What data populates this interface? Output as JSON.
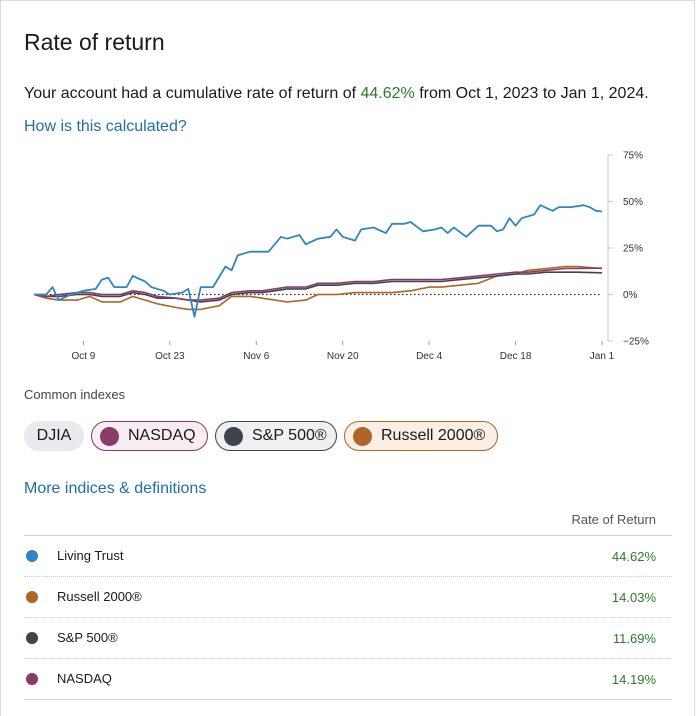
{
  "header": {
    "title": "Rate of return",
    "summary_prefix": "Your account had a cumulative rate of return of ",
    "summary_pct": "44.62%",
    "summary_suffix": " from Oct 1, 2023 to Jan 1, 2024.",
    "how_link": "How is this calculated?"
  },
  "chart_data": {
    "type": "line",
    "x_start": "2023-10-01",
    "x_end": "2024-01-01",
    "x_tick_labels": [
      "Oct 9",
      "Oct 23",
      "Nov 6",
      "Nov 20",
      "Dec 4",
      "Dec 18",
      "Jan 1"
    ],
    "x_tick_dates": [
      "2023-10-09",
      "2023-10-23",
      "2023-11-06",
      "2023-11-20",
      "2023-12-04",
      "2023-12-18",
      "2024-01-01"
    ],
    "y_tick_labels": [
      "75%",
      "50%",
      "25%",
      "0%",
      "−25%"
    ],
    "y_tick_values": [
      75,
      50,
      25,
      0,
      -25
    ],
    "ylim": [
      -25,
      75
    ],
    "zero_line": "dotted",
    "grid": false,
    "y_axis_position": "right",
    "series": [
      {
        "name": "Russell 2000®",
        "color": "#b06426",
        "points": [
          [
            "2023-10-01",
            0
          ],
          [
            "2023-10-03",
            -2
          ],
          [
            "2023-10-05",
            -3
          ],
          [
            "2023-10-08",
            -3
          ],
          [
            "2023-10-10",
            -1
          ],
          [
            "2023-10-12",
            -4
          ],
          [
            "2023-10-15",
            -4
          ],
          [
            "2023-10-17",
            -1
          ],
          [
            "2023-10-19",
            -3
          ],
          [
            "2023-10-21",
            -5
          ],
          [
            "2023-10-24",
            -7
          ],
          [
            "2023-10-26",
            -8
          ],
          [
            "2023-10-28",
            -8
          ],
          [
            "2023-10-31",
            -6
          ],
          [
            "2023-11-02",
            -1
          ],
          [
            "2023-11-05",
            -1
          ],
          [
            "2023-11-07",
            -2
          ],
          [
            "2023-11-09",
            -3
          ],
          [
            "2023-11-11",
            -4
          ],
          [
            "2023-11-14",
            -3
          ],
          [
            "2023-11-16",
            0
          ],
          [
            "2023-11-19",
            0
          ],
          [
            "2023-11-22",
            1
          ],
          [
            "2023-11-25",
            1
          ],
          [
            "2023-11-28",
            1
          ],
          [
            "2023-12-01",
            2
          ],
          [
            "2023-12-04",
            4
          ],
          [
            "2023-12-06",
            4
          ],
          [
            "2023-12-09",
            5
          ],
          [
            "2023-12-12",
            6
          ],
          [
            "2023-12-15",
            10
          ],
          [
            "2023-12-18",
            11
          ],
          [
            "2023-12-20",
            13
          ],
          [
            "2023-12-23",
            14
          ],
          [
            "2023-12-26",
            15
          ],
          [
            "2023-12-28",
            15
          ],
          [
            "2024-01-01",
            14
          ]
        ]
      },
      {
        "name": "S&P 500®",
        "color": "#3d444b",
        "points": [
          [
            "2023-10-01",
            0
          ],
          [
            "2023-10-03",
            -1
          ],
          [
            "2023-10-05",
            -1
          ],
          [
            "2023-10-08",
            0
          ],
          [
            "2023-10-10",
            0
          ],
          [
            "2023-10-12",
            -1
          ],
          [
            "2023-10-15",
            -1
          ],
          [
            "2023-10-17",
            1
          ],
          [
            "2023-10-19",
            0
          ],
          [
            "2023-10-21",
            -2
          ],
          [
            "2023-10-24",
            -2
          ],
          [
            "2023-10-26",
            -3
          ],
          [
            "2023-10-28",
            -4
          ],
          [
            "2023-10-31",
            -3
          ],
          [
            "2023-11-02",
            0
          ],
          [
            "2023-11-05",
            1
          ],
          [
            "2023-11-07",
            1
          ],
          [
            "2023-11-09",
            2
          ],
          [
            "2023-11-11",
            3
          ],
          [
            "2023-11-14",
            3
          ],
          [
            "2023-11-16",
            5
          ],
          [
            "2023-11-19",
            5
          ],
          [
            "2023-11-22",
            6
          ],
          [
            "2023-11-25",
            6
          ],
          [
            "2023-11-28",
            7
          ],
          [
            "2023-12-01",
            7
          ],
          [
            "2023-12-04",
            7
          ],
          [
            "2023-12-06",
            7
          ],
          [
            "2023-12-09",
            8
          ],
          [
            "2023-12-12",
            9
          ],
          [
            "2023-12-15",
            10
          ],
          [
            "2023-12-18",
            11
          ],
          [
            "2023-12-20",
            11
          ],
          [
            "2023-12-23",
            12
          ],
          [
            "2023-12-26",
            12
          ],
          [
            "2023-12-28",
            12
          ],
          [
            "2024-01-01",
            11.69
          ]
        ]
      },
      {
        "name": "NASDAQ",
        "color": "#8a3a66",
        "points": [
          [
            "2023-10-01",
            0
          ],
          [
            "2023-10-03",
            -1
          ],
          [
            "2023-10-05",
            0
          ],
          [
            "2023-10-08",
            1
          ],
          [
            "2023-10-10",
            1
          ],
          [
            "2023-10-12",
            0
          ],
          [
            "2023-10-15",
            0
          ],
          [
            "2023-10-17",
            2
          ],
          [
            "2023-10-19",
            1
          ],
          [
            "2023-10-21",
            -1
          ],
          [
            "2023-10-24",
            -2
          ],
          [
            "2023-10-26",
            -3
          ],
          [
            "2023-10-28",
            -3
          ],
          [
            "2023-10-31",
            -2
          ],
          [
            "2023-11-02",
            1
          ],
          [
            "2023-11-05",
            2
          ],
          [
            "2023-11-07",
            2
          ],
          [
            "2023-11-09",
            3
          ],
          [
            "2023-11-11",
            4
          ],
          [
            "2023-11-14",
            4
          ],
          [
            "2023-11-16",
            6
          ],
          [
            "2023-11-19",
            6
          ],
          [
            "2023-11-22",
            7
          ],
          [
            "2023-11-25",
            7
          ],
          [
            "2023-11-28",
            8
          ],
          [
            "2023-12-01",
            8
          ],
          [
            "2023-12-04",
            8
          ],
          [
            "2023-12-06",
            8
          ],
          [
            "2023-12-09",
            9
          ],
          [
            "2023-12-12",
            10
          ],
          [
            "2023-12-15",
            11
          ],
          [
            "2023-12-18",
            12
          ],
          [
            "2023-12-20",
            12
          ],
          [
            "2023-12-23",
            13
          ],
          [
            "2023-12-26",
            14
          ],
          [
            "2023-12-28",
            14
          ],
          [
            "2024-01-01",
            14.19
          ]
        ]
      },
      {
        "name": "Living Trust",
        "color": "#2f86c3",
        "points": [
          [
            "2023-10-01",
            0
          ],
          [
            "2023-10-03",
            0
          ],
          [
            "2023-10-04",
            4
          ],
          [
            "2023-10-05",
            -3
          ],
          [
            "2023-10-07",
            0
          ],
          [
            "2023-10-09",
            2
          ],
          [
            "2023-10-11",
            3
          ],
          [
            "2023-10-12",
            8
          ],
          [
            "2023-10-13",
            9
          ],
          [
            "2023-10-14",
            4
          ],
          [
            "2023-10-16",
            4
          ],
          [
            "2023-10-17",
            10
          ],
          [
            "2023-10-19",
            7
          ],
          [
            "2023-10-20",
            4
          ],
          [
            "2023-10-22",
            2
          ],
          [
            "2023-10-23",
            0
          ],
          [
            "2023-10-25",
            1
          ],
          [
            "2023-10-26",
            3
          ],
          [
            "2023-10-27",
            -12
          ],
          [
            "2023-10-28",
            4
          ],
          [
            "2023-10-30",
            4
          ],
          [
            "2023-11-01",
            15
          ],
          [
            "2023-11-02",
            13
          ],
          [
            "2023-11-03",
            21
          ],
          [
            "2023-11-05",
            23
          ],
          [
            "2023-11-08",
            23
          ],
          [
            "2023-11-10",
            31
          ],
          [
            "2023-11-11",
            30
          ],
          [
            "2023-11-13",
            32
          ],
          [
            "2023-11-14",
            27
          ],
          [
            "2023-11-16",
            30
          ],
          [
            "2023-11-18",
            31
          ],
          [
            "2023-11-19",
            35
          ],
          [
            "2023-11-20",
            31
          ],
          [
            "2023-11-22",
            29
          ],
          [
            "2023-11-23",
            35
          ],
          [
            "2023-11-25",
            36
          ],
          [
            "2023-11-27",
            33
          ],
          [
            "2023-11-28",
            38
          ],
          [
            "2023-11-30",
            38
          ],
          [
            "2023-12-01",
            39
          ],
          [
            "2023-12-03",
            34
          ],
          [
            "2023-12-05",
            35
          ],
          [
            "2023-12-06",
            36
          ],
          [
            "2023-12-07",
            33
          ],
          [
            "2023-12-08",
            36
          ],
          [
            "2023-12-10",
            31
          ],
          [
            "2023-12-12",
            37
          ],
          [
            "2023-12-14",
            37
          ],
          [
            "2023-12-15",
            34
          ],
          [
            "2023-12-16",
            35
          ],
          [
            "2023-12-17",
            41
          ],
          [
            "2023-12-18",
            37
          ],
          [
            "2023-12-19",
            41
          ],
          [
            "2023-12-21",
            43
          ],
          [
            "2023-12-22",
            48
          ],
          [
            "2023-12-24",
            45
          ],
          [
            "2023-12-25",
            47
          ],
          [
            "2023-12-27",
            47
          ],
          [
            "2023-12-29",
            48
          ],
          [
            "2023-12-30",
            47
          ],
          [
            "2023-12-31",
            45
          ],
          [
            "2024-01-01",
            44.62
          ]
        ]
      }
    ]
  },
  "indexes": {
    "label": "Common indexes",
    "chips": [
      {
        "label": "DJIA"
      },
      {
        "label": "NASDAQ",
        "color": "#8a3a66"
      },
      {
        "label": "S&P 500®",
        "color": "#3d444b"
      },
      {
        "label": "Russell 2000®",
        "color": "#b06426"
      }
    ],
    "more_link": "More indices & definitions"
  },
  "table": {
    "header": "Rate of Return",
    "rows": [
      {
        "name": "Living Trust",
        "value": "44.62%",
        "color": "#2f86c3"
      },
      {
        "name": "Russell 2000®",
        "value": "14.03%",
        "color": "#b06426"
      },
      {
        "name": "S&P 500®",
        "value": "11.69%",
        "color": "#3d444b"
      },
      {
        "name": "NASDAQ",
        "value": "14.19%",
        "color": "#8a3a66"
      }
    ]
  }
}
